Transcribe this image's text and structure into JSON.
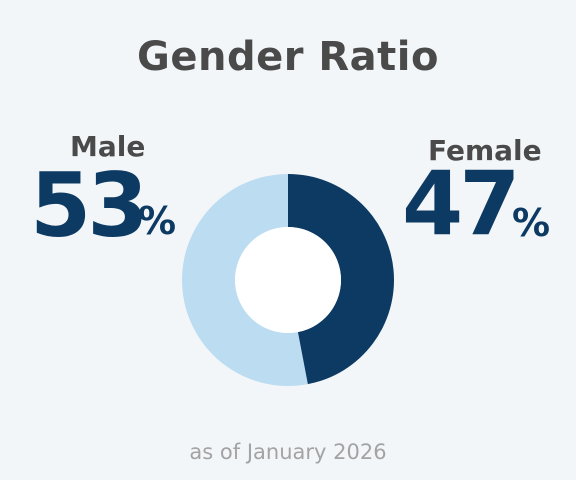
{
  "chart_data": {
    "type": "pie",
    "title": "Gender Ratio",
    "subtitle": "as of January 2026",
    "unit": "%",
    "slices": [
      {
        "name": "Male",
        "value": 53,
        "color": "#bcdcf2"
      },
      {
        "name": "Female",
        "value": 47,
        "color": "#0d3a63"
      }
    ],
    "hole_ratio": 0.5
  },
  "labels": {
    "male": {
      "name": "Male",
      "value": "53",
      "unit": "%"
    },
    "female": {
      "name": "Female",
      "value": "47",
      "unit": "%"
    }
  },
  "colors": {
    "background": "#f3f6f9",
    "text_dark": "#4a4a4a",
    "navy": "#0d3a63",
    "light_blue": "#bcdcf2",
    "footnote": "#a3a3a3"
  }
}
